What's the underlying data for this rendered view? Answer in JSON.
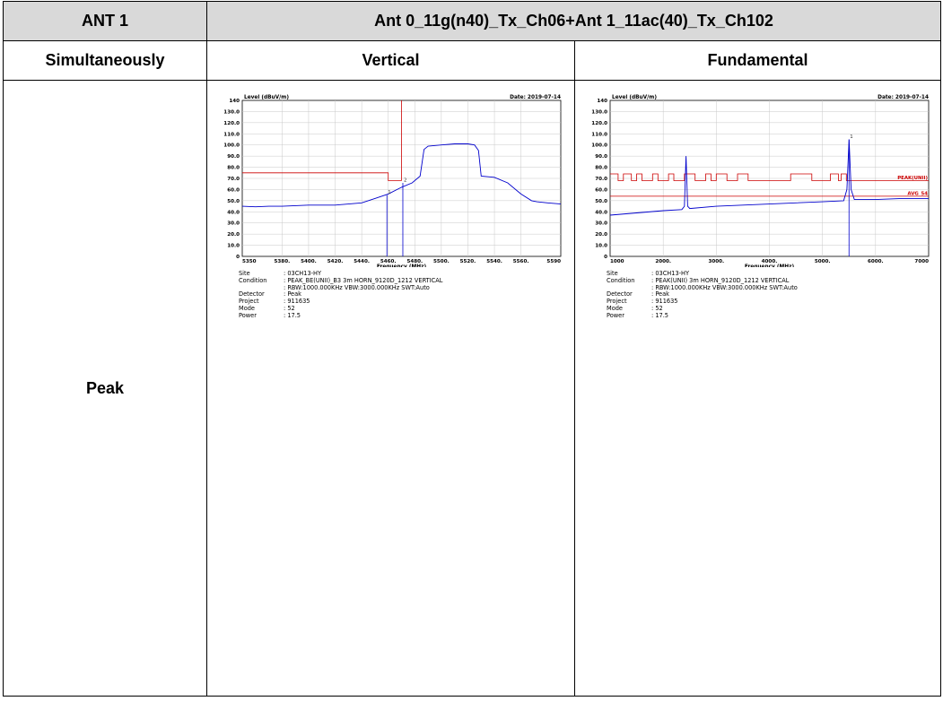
{
  "header": {
    "col1": "ANT 1",
    "col2": "Ant 0_11g(n40)_Tx_Ch06+Ant 1_11ac(40)_Tx_Ch102"
  },
  "subheader": {
    "col1": "Simultaneously",
    "col2": "Vertical",
    "col3": "Fundamental"
  },
  "row_label": "Peak",
  "colors": {
    "trace": "#0000cc",
    "limit": "#cc0000",
    "grid": "#c8c8c8",
    "header_bg": "#d9d9d9"
  },
  "chart_data": [
    {
      "type": "line",
      "ylabel": "Level (dBuV/m)",
      "xlabel": "Frequency (MHz)",
      "date": "Date: 2019-07-14",
      "xlim": [
        5350,
        5590
      ],
      "ylim": [
        0,
        140
      ],
      "xticks": [
        5350,
        5380,
        5400,
        5420,
        5440,
        5460,
        5480,
        5500,
        5520,
        5540,
        5560,
        5590
      ],
      "xtick_labels": [
        "5350",
        "5380.",
        "5400.",
        "5420.",
        "5440.",
        "5460.",
        "5480.",
        "5500.",
        "5520.",
        "5540.",
        "5560.",
        "5590"
      ],
      "yticks": [
        0,
        10,
        20,
        30,
        40,
        50,
        60,
        70,
        80,
        90,
        100,
        110,
        120,
        130,
        140
      ],
      "ytick_labels": [
        "0",
        "10.0",
        "20.0",
        "30.0",
        "40.0",
        "50.0",
        "60.0",
        "70.0",
        "80.0",
        "90.0",
        "100.0",
        "110.0",
        "120.0",
        "130.0",
        "140"
      ],
      "grid": true,
      "trace": [
        [
          5350,
          45
        ],
        [
          5360,
          44.5
        ],
        [
          5370,
          45
        ],
        [
          5380,
          45
        ],
        [
          5390,
          45.5
        ],
        [
          5400,
          46
        ],
        [
          5410,
          46
        ],
        [
          5420,
          46
        ],
        [
          5430,
          47
        ],
        [
          5440,
          48
        ],
        [
          5450,
          52
        ],
        [
          5460,
          56
        ],
        [
          5470,
          62
        ],
        [
          5478,
          66
        ],
        [
          5484,
          72
        ],
        [
          5487,
          96
        ],
        [
          5490,
          99
        ],
        [
          5500,
          100
        ],
        [
          5510,
          101
        ],
        [
          5520,
          101
        ],
        [
          5525,
          100
        ],
        [
          5528,
          95
        ],
        [
          5530,
          72
        ],
        [
          5540,
          71
        ],
        [
          5550,
          66
        ],
        [
          5560,
          56
        ],
        [
          5568,
          50
        ],
        [
          5572,
          49
        ],
        [
          5580,
          48
        ],
        [
          5590,
          47
        ]
      ],
      "limit_lines": [
        {
          "points": [
            [
              5350,
              75
            ],
            [
              5460,
              75
            ],
            [
              5460,
              68
            ],
            [
              5470,
              68
            ]
          ],
          "color": "#cc0000"
        },
        {
          "points": [
            [
              5470,
              140
            ],
            [
              5470,
              68
            ]
          ],
          "color": "#cc0000"
        }
      ],
      "markers": [
        {
          "label": "1",
          "x": 5459,
          "y": 55
        },
        {
          "label": "2",
          "x": 5471,
          "y": 66
        }
      ],
      "info": [
        {
          "key": "Site",
          "value": ": 03CH13-HY"
        },
        {
          "key": "Condition",
          "value": ": PEAK_BE(UNII)_B3 3m HORN_9120D_1212 VERTICAL"
        },
        {
          "key": "",
          "value": ": RBW:1000.000KHz VBW:3000.000KHz SWT:Auto"
        },
        {
          "key": "Detector",
          "value": ": Peak"
        },
        {
          "key": "Project",
          "value": ": 911635"
        },
        {
          "key": "Mode",
          "value": ": 52"
        },
        {
          "key": "Power",
          "value": ": 17.5"
        }
      ]
    },
    {
      "type": "line",
      "ylabel": "Level (dBuV/m)",
      "xlabel": "Frequency (MHz)",
      "date": "Date: 2019-07-14",
      "xlim": [
        1000,
        7000
      ],
      "ylim": [
        0,
        140
      ],
      "xticks": [
        1000,
        2000,
        3000,
        4000,
        5000,
        6000,
        7000
      ],
      "xtick_labels": [
        "1000",
        "2000.",
        "3000.",
        "4000.",
        "5000.",
        "6000.",
        "7000"
      ],
      "yticks": [
        0,
        10,
        20,
        30,
        40,
        50,
        60,
        70,
        80,
        90,
        100,
        110,
        120,
        130,
        140
      ],
      "ytick_labels": [
        "0",
        "10.0",
        "20.0",
        "30.0",
        "40.0",
        "50.0",
        "60.0",
        "70.0",
        "80.0",
        "90.0",
        "100.0",
        "110.0",
        "120.0",
        "130.0",
        "140"
      ],
      "grid": true,
      "trace": [
        [
          1000,
          37
        ],
        [
          1500,
          39
        ],
        [
          2000,
          41
        ],
        [
          2350,
          42
        ],
        [
          2400,
          45
        ],
        [
          2430,
          90
        ],
        [
          2460,
          45
        ],
        [
          2500,
          43
        ],
        [
          3000,
          45
        ],
        [
          3500,
          46
        ],
        [
          4000,
          47
        ],
        [
          4500,
          48
        ],
        [
          5000,
          49
        ],
        [
          5400,
          50
        ],
        [
          5460,
          60
        ],
        [
          5500,
          105
        ],
        [
          5540,
          60
        ],
        [
          5600,
          51
        ],
        [
          6000,
          51
        ],
        [
          6500,
          52
        ],
        [
          7000,
          52
        ]
      ],
      "limit_lines": [
        {
          "label": "PEAK(UNII)",
          "points": [
            [
              1000,
              74
            ],
            [
              1150,
              74
            ],
            [
              1150,
              68
            ],
            [
              1250,
              68
            ],
            [
              1250,
              74
            ],
            [
              1400,
              74
            ],
            [
              1400,
              68
            ],
            [
              1500,
              68
            ],
            [
              1500,
              74
            ],
            [
              1600,
              74
            ],
            [
              1600,
              68
            ],
            [
              1800,
              68
            ],
            [
              1800,
              74
            ],
            [
              1900,
              74
            ],
            [
              1900,
              68
            ],
            [
              2100,
              68
            ],
            [
              2100,
              74
            ],
            [
              2200,
              74
            ],
            [
              2200,
              68
            ],
            [
              2400,
              68
            ],
            [
              2400,
              74
            ],
            [
              2600,
              74
            ],
            [
              2600,
              68
            ],
            [
              2800,
              68
            ],
            [
              2800,
              74
            ],
            [
              2900,
              74
            ],
            [
              2900,
              68
            ],
            [
              3000,
              68
            ],
            [
              3000,
              74
            ],
            [
              3200,
              74
            ],
            [
              3200,
              68
            ],
            [
              3400,
              68
            ],
            [
              3400,
              74
            ],
            [
              3600,
              74
            ],
            [
              3600,
              68
            ],
            [
              4400,
              68
            ],
            [
              4400,
              74
            ],
            [
              4800,
              74
            ],
            [
              4800,
              68
            ],
            [
              5150,
              68
            ],
            [
              5150,
              74
            ],
            [
              5300,
              74
            ],
            [
              5300,
              68
            ],
            [
              5350,
              68
            ],
            [
              5350,
              74
            ],
            [
              5450,
              74
            ],
            [
              5450,
              68
            ],
            [
              7000,
              68
            ]
          ],
          "color": "#cc0000"
        },
        {
          "label": "AVG_54",
          "points": [
            [
              1000,
              54
            ],
            [
              7000,
              54
            ]
          ],
          "color": "#cc0000"
        }
      ],
      "markers": [
        {
          "label": "1",
          "x": 5500,
          "y": 105
        }
      ],
      "info": [
        {
          "key": "Site",
          "value": ": 03CH13-HY"
        },
        {
          "key": "Condition",
          "value": ": PEAK(UNII) 3m HORN_9120D_1212 VERTICAL"
        },
        {
          "key": "",
          "value": ": RBW:1000.000KHz VBW:3000.000KHz SWT:Auto"
        },
        {
          "key": "Detector",
          "value": ": Peak"
        },
        {
          "key": "Project",
          "value": ": 911635"
        },
        {
          "key": "Mode",
          "value": ": 52"
        },
        {
          "key": "Power",
          "value": ": 17.5"
        }
      ]
    }
  ]
}
